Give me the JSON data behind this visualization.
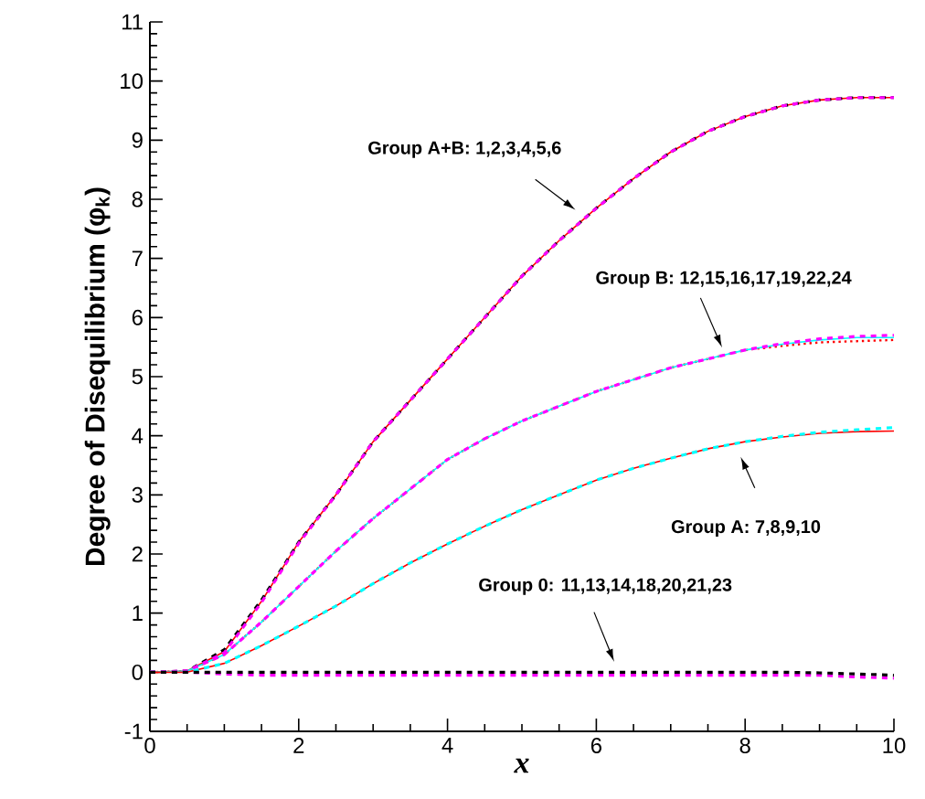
{
  "chart_data": {
    "type": "line",
    "xlabel": "x",
    "ylabel": "Degree of Disequilibrium (φ$_{k}$)",
    "x": [
      0,
      0.5,
      1,
      1.5,
      2,
      2.5,
      3,
      3.5,
      4,
      4.5,
      5,
      5.5,
      6,
      6.5,
      7,
      7.5,
      8,
      8.5,
      9,
      9.5,
      10
    ],
    "xlim": [
      0,
      10
    ],
    "ylim": [
      -1,
      11
    ],
    "xticks": [
      0,
      2,
      4,
      6,
      8,
      10
    ],
    "yticks": [
      -1,
      0,
      1,
      2,
      3,
      4,
      5,
      6,
      7,
      8,
      9,
      10,
      11
    ],
    "grid": false,
    "marker": "none",
    "series": [
      {
        "color": "#ff0000",
        "line_style": "solid",
        "values": [
          0,
          0.02,
          0.35,
          1.2,
          2.2,
          3.0,
          3.9,
          4.6,
          5.3,
          6.0,
          6.7,
          7.3,
          7.85,
          8.35,
          8.8,
          9.15,
          9.4,
          9.58,
          9.68,
          9.72,
          9.72
        ]
      },
      {
        "color": "#000000",
        "line_style": "dashed",
        "values": [
          0,
          0.02,
          0.38,
          1.22,
          2.2,
          3.0,
          3.9,
          4.6,
          5.3,
          6.0,
          6.7,
          7.3,
          7.85,
          8.35,
          8.8,
          9.15,
          9.4,
          9.58,
          9.68,
          9.72,
          9.72
        ]
      },
      {
        "color": "#ff00ff",
        "line_style": "dashed",
        "values": [
          0,
          0.02,
          0.33,
          1.18,
          2.18,
          3.0,
          3.9,
          4.6,
          5.3,
          6.0,
          6.7,
          7.3,
          7.85,
          8.35,
          8.8,
          9.15,
          9.4,
          9.58,
          9.68,
          9.72,
          9.72
        ]
      },
      {
        "color": "#ff0000",
        "line_style": "dotted",
        "values": [
          0,
          0.02,
          0.3,
          0.85,
          1.45,
          2.05,
          2.6,
          3.1,
          3.6,
          3.95,
          4.25,
          4.5,
          4.75,
          4.95,
          5.15,
          5.3,
          5.45,
          5.52,
          5.58,
          5.6,
          5.62
        ]
      },
      {
        "color": "#00ffff",
        "line_style": "solid",
        "values": [
          0,
          0.02,
          0.3,
          0.85,
          1.45,
          2.05,
          2.6,
          3.1,
          3.6,
          3.95,
          4.25,
          4.5,
          4.75,
          4.95,
          5.15,
          5.3,
          5.45,
          5.55,
          5.62,
          5.66,
          5.66
        ]
      },
      {
        "color": "#ff00ff",
        "line_style": "dashed",
        "values": [
          0,
          0.02,
          0.3,
          0.85,
          1.45,
          2.05,
          2.6,
          3.1,
          3.6,
          3.95,
          4.25,
          4.5,
          4.75,
          4.95,
          5.15,
          5.3,
          5.45,
          5.56,
          5.64,
          5.68,
          5.7
        ]
      },
      {
        "color": "#ff0000",
        "line_style": "solid",
        "values": [
          0,
          0,
          0.15,
          0.45,
          0.78,
          1.12,
          1.5,
          1.85,
          2.17,
          2.47,
          2.75,
          3.0,
          3.25,
          3.45,
          3.62,
          3.78,
          3.9,
          3.98,
          4.04,
          4.07,
          4.08
        ]
      },
      {
        "color": "#00ffff",
        "line_style": "dashed",
        "values": [
          0,
          0,
          0.15,
          0.45,
          0.78,
          1.12,
          1.5,
          1.85,
          2.17,
          2.47,
          2.75,
          3.0,
          3.25,
          3.45,
          3.62,
          3.78,
          3.9,
          3.99,
          4.06,
          4.1,
          4.14
        ]
      },
      {
        "color": "#ff00ff",
        "line_style": "dashed",
        "values": [
          0,
          0,
          -0.03,
          -0.05,
          -0.05,
          -0.05,
          -0.05,
          -0.05,
          -0.05,
          -0.05,
          -0.05,
          -0.05,
          -0.05,
          -0.05,
          -0.05,
          -0.05,
          -0.05,
          -0.05,
          -0.05,
          -0.08,
          -0.1
        ]
      },
      {
        "color": "#000000",
        "line_style": "dashed",
        "values": [
          0,
          0,
          0,
          0,
          0,
          0,
          0,
          0,
          0,
          0,
          0,
          0,
          0,
          0,
          0,
          0,
          0,
          0,
          -0.01,
          -0.03,
          -0.05
        ]
      }
    ],
    "annotations": [
      "Group A+B: 1,2,3,4,5,6",
      "Group B: 12,15,16,17,19,22,24",
      "Group A: 7,8,9,10",
      "Group 0: 11,13,14,18,20,21,23"
    ]
  }
}
